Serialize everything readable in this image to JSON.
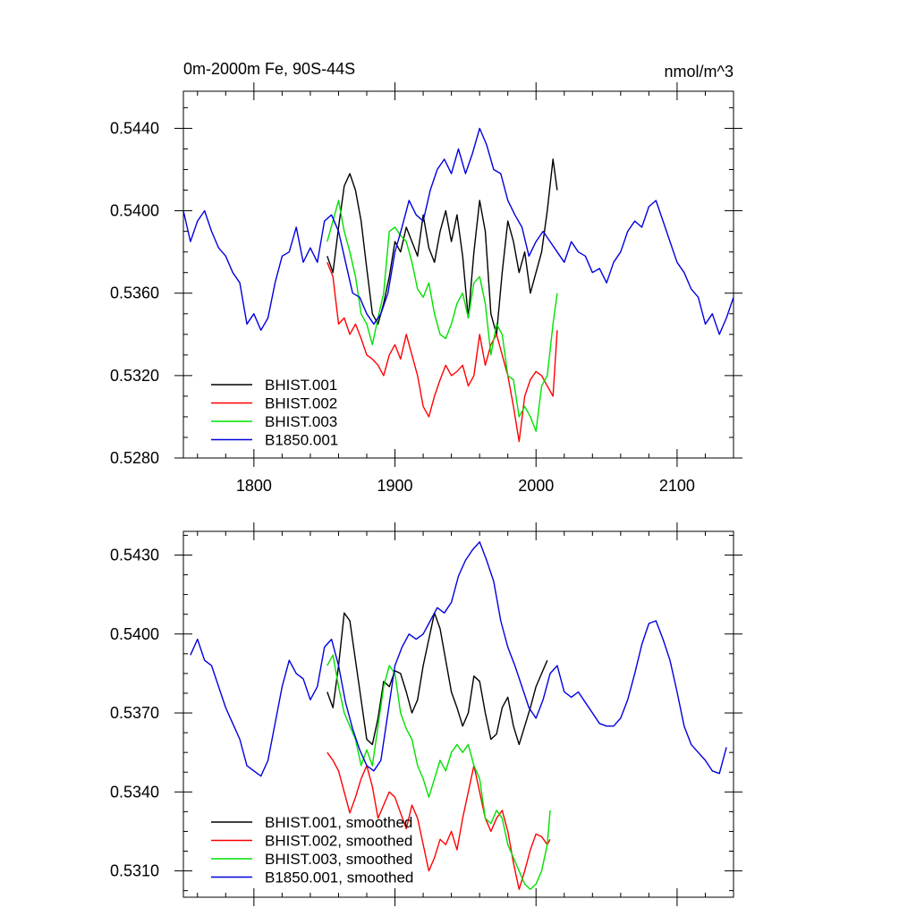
{
  "chart_data": [
    {
      "type": "line",
      "title": "0m-2000m Fe, 90S-44S",
      "units": "nmol/m^3",
      "xlim": [
        1750,
        2140
      ],
      "ylim": [
        0.528,
        0.5458
      ],
      "x_ticks": [
        1800,
        1900,
        2000,
        2100
      ],
      "x_tick_labels": [
        "1800",
        "1900",
        "2000",
        "2100"
      ],
      "y_ticks": [
        0.528,
        0.532,
        0.536,
        0.54,
        0.544
      ],
      "y_tick_labels": [
        "0.5280",
        "0.5320",
        "0.5360",
        "0.5400",
        "0.5440"
      ],
      "legend": "bottom-left",
      "series": [
        {
          "name": "BHIST.001",
          "color": "#000000",
          "x": [
            1852,
            1856,
            1860,
            1864,
            1868,
            1872,
            1876,
            1880,
            1884,
            1888,
            1892,
            1896,
            1900,
            1904,
            1908,
            1912,
            1916,
            1920,
            1924,
            1928,
            1932,
            1936,
            1940,
            1944,
            1948,
            1952,
            1956,
            1960,
            1964,
            1968,
            1972,
            1976,
            1980,
            1984,
            1988,
            1992,
            1996,
            2000,
            2004,
            2008,
            2012,
            2015
          ],
          "values": [
            0.5378,
            0.537,
            0.5392,
            0.5412,
            0.5418,
            0.541,
            0.5395,
            0.5372,
            0.535,
            0.5345,
            0.5355,
            0.5368,
            0.5385,
            0.538,
            0.5392,
            0.5385,
            0.5378,
            0.5398,
            0.5382,
            0.5375,
            0.539,
            0.54,
            0.5385,
            0.5398,
            0.5378,
            0.5348,
            0.538,
            0.5405,
            0.539,
            0.535,
            0.534,
            0.537,
            0.5395,
            0.5385,
            0.537,
            0.538,
            0.536,
            0.537,
            0.538,
            0.54,
            0.5425,
            0.541
          ]
        },
        {
          "name": "BHIST.002",
          "color": "#ff0000",
          "x": [
            1852,
            1856,
            1860,
            1864,
            1868,
            1872,
            1876,
            1880,
            1884,
            1888,
            1892,
            1896,
            1900,
            1904,
            1908,
            1912,
            1916,
            1920,
            1924,
            1928,
            1932,
            1936,
            1940,
            1944,
            1948,
            1952,
            1956,
            1960,
            1964,
            1968,
            1972,
            1976,
            1980,
            1984,
            1988,
            1992,
            1996,
            2000,
            2004,
            2008,
            2012,
            2015
          ],
          "values": [
            0.5375,
            0.5368,
            0.5345,
            0.5348,
            0.534,
            0.5345,
            0.5338,
            0.533,
            0.5328,
            0.5325,
            0.532,
            0.533,
            0.5335,
            0.5328,
            0.534,
            0.533,
            0.532,
            0.5305,
            0.53,
            0.531,
            0.5318,
            0.5325,
            0.532,
            0.5322,
            0.5325,
            0.5315,
            0.532,
            0.534,
            0.5325,
            0.5335,
            0.534,
            0.533,
            0.532,
            0.5305,
            0.5288,
            0.531,
            0.5318,
            0.5322,
            0.532,
            0.5315,
            0.531,
            0.5342
          ]
        },
        {
          "name": "BHIST.003",
          "color": "#00e000",
          "x": [
            1852,
            1856,
            1860,
            1864,
            1868,
            1872,
            1876,
            1880,
            1884,
            1888,
            1892,
            1896,
            1900,
            1904,
            1908,
            1912,
            1916,
            1920,
            1924,
            1928,
            1932,
            1936,
            1940,
            1944,
            1948,
            1952,
            1956,
            1960,
            1964,
            1968,
            1972,
            1976,
            1980,
            1984,
            1988,
            1992,
            1996,
            2000,
            2004,
            2008,
            2012,
            2015
          ],
          "values": [
            0.5385,
            0.5395,
            0.5405,
            0.539,
            0.538,
            0.5368,
            0.535,
            0.5345,
            0.5335,
            0.5348,
            0.536,
            0.539,
            0.5392,
            0.5388,
            0.5385,
            0.5375,
            0.5362,
            0.5358,
            0.5365,
            0.535,
            0.534,
            0.5338,
            0.5345,
            0.5355,
            0.536,
            0.5348,
            0.5365,
            0.5368,
            0.5355,
            0.533,
            0.5345,
            0.534,
            0.532,
            0.5318,
            0.53,
            0.5305,
            0.53,
            0.5293,
            0.5315,
            0.532,
            0.5345,
            0.536
          ]
        },
        {
          "name": "B1850.001",
          "color": "#0000e0",
          "x": [
            1750,
            1755,
            1760,
            1765,
            1770,
            1775,
            1780,
            1785,
            1790,
            1795,
            1800,
            1805,
            1810,
            1815,
            1820,
            1825,
            1830,
            1835,
            1840,
            1845,
            1850,
            1855,
            1860,
            1865,
            1870,
            1875,
            1880,
            1885,
            1890,
            1895,
            1900,
            1905,
            1910,
            1915,
            1920,
            1925,
            1930,
            1935,
            1940,
            1945,
            1950,
            1955,
            1960,
            1965,
            1970,
            1975,
            1980,
            1985,
            1990,
            1995,
            2000,
            2005,
            2010,
            2015,
            2020,
            2025,
            2030,
            2035,
            2040,
            2045,
            2050,
            2055,
            2060,
            2065,
            2070,
            2075,
            2080,
            2085,
            2090,
            2095,
            2100,
            2105,
            2110,
            2115,
            2120,
            2125,
            2130,
            2135,
            2140
          ],
          "values": [
            0.54,
            0.5385,
            0.5395,
            0.54,
            0.539,
            0.5382,
            0.5378,
            0.537,
            0.5365,
            0.5345,
            0.535,
            0.5342,
            0.5348,
            0.5365,
            0.5378,
            0.538,
            0.5392,
            0.5375,
            0.5382,
            0.5375,
            0.5395,
            0.5398,
            0.539,
            0.5375,
            0.536,
            0.5358,
            0.535,
            0.5345,
            0.535,
            0.536,
            0.538,
            0.5392,
            0.5405,
            0.5398,
            0.5395,
            0.541,
            0.542,
            0.5425,
            0.5418,
            0.543,
            0.5418,
            0.5428,
            0.544,
            0.5432,
            0.542,
            0.5418,
            0.5405,
            0.5398,
            0.5392,
            0.5378,
            0.5385,
            0.539,
            0.5385,
            0.538,
            0.5375,
            0.5385,
            0.538,
            0.5378,
            0.537,
            0.5372,
            0.5365,
            0.5375,
            0.538,
            0.539,
            0.5395,
            0.5392,
            0.5402,
            0.5405,
            0.5395,
            0.5385,
            0.5375,
            0.537,
            0.5362,
            0.5358,
            0.5345,
            0.535,
            0.534,
            0.5348,
            0.5358
          ]
        }
      ]
    },
    {
      "type": "line",
      "xlim": [
        1750,
        2140
      ],
      "ylim": [
        0.53,
        0.5439
      ],
      "x_ticks": [
        1800,
        1900,
        2000,
        2100
      ],
      "y_ticks": [
        0.531,
        0.534,
        0.537,
        0.54,
        0.543
      ],
      "y_tick_labels": [
        "0.5310",
        "0.5340",
        "0.5370",
        "0.5400",
        "0.5430"
      ],
      "legend": "bottom-left",
      "series": [
        {
          "name": "BHIST.001, smoothed",
          "color": "#000000",
          "x": [
            1852,
            1856,
            1860,
            1864,
            1868,
            1872,
            1876,
            1880,
            1884,
            1888,
            1892,
            1896,
            1900,
            1904,
            1908,
            1912,
            1916,
            1920,
            1924,
            1928,
            1932,
            1936,
            1940,
            1944,
            1948,
            1952,
            1956,
            1960,
            1964,
            1968,
            1972,
            1976,
            1980,
            1984,
            1988,
            1992,
            1996,
            2000,
            2004,
            2008
          ],
          "values": [
            0.5378,
            0.5372,
            0.5388,
            0.5408,
            0.5405,
            0.539,
            0.5375,
            0.536,
            0.5358,
            0.5368,
            0.5382,
            0.538,
            0.5386,
            0.5385,
            0.5378,
            0.537,
            0.5375,
            0.5388,
            0.5398,
            0.5408,
            0.5402,
            0.539,
            0.5378,
            0.5372,
            0.5365,
            0.537,
            0.5384,
            0.5382,
            0.537,
            0.536,
            0.5362,
            0.5372,
            0.5376,
            0.5365,
            0.5358,
            0.5365,
            0.5372,
            0.538,
            0.5385,
            0.539
          ]
        },
        {
          "name": "BHIST.002, smoothed",
          "color": "#ff0000",
          "x": [
            1852,
            1856,
            1860,
            1864,
            1868,
            1872,
            1876,
            1880,
            1884,
            1888,
            1892,
            1896,
            1900,
            1904,
            1908,
            1912,
            1916,
            1920,
            1924,
            1928,
            1932,
            1936,
            1940,
            1944,
            1948,
            1952,
            1956,
            1960,
            1964,
            1968,
            1972,
            1976,
            1980,
            1984,
            1988,
            1992,
            1996,
            2000,
            2004,
            2008,
            2010
          ],
          "values": [
            0.5355,
            0.5352,
            0.5348,
            0.534,
            0.5332,
            0.5338,
            0.5345,
            0.535,
            0.5342,
            0.533,
            0.5335,
            0.534,
            0.5338,
            0.5332,
            0.5326,
            0.5335,
            0.533,
            0.532,
            0.531,
            0.5315,
            0.5322,
            0.532,
            0.5325,
            0.5318,
            0.533,
            0.534,
            0.535,
            0.534,
            0.533,
            0.5325,
            0.533,
            0.5333,
            0.5325,
            0.5313,
            0.5303,
            0.531,
            0.5318,
            0.5324,
            0.5323,
            0.532,
            0.5322
          ]
        },
        {
          "name": "BHIST.003, smoothed",
          "color": "#00e000",
          "x": [
            1852,
            1856,
            1860,
            1864,
            1868,
            1872,
            1876,
            1880,
            1884,
            1888,
            1892,
            1896,
            1900,
            1904,
            1908,
            1912,
            1916,
            1920,
            1924,
            1928,
            1932,
            1936,
            1940,
            1944,
            1948,
            1952,
            1956,
            1960,
            1964,
            1968,
            1972,
            1976,
            1980,
            1984,
            1988,
            1992,
            1996,
            2000,
            2004,
            2008,
            2010
          ],
          "values": [
            0.5388,
            0.5392,
            0.538,
            0.537,
            0.5365,
            0.536,
            0.535,
            0.5356,
            0.535,
            0.5365,
            0.538,
            0.5388,
            0.5385,
            0.537,
            0.5364,
            0.536,
            0.535,
            0.5345,
            0.5338,
            0.5345,
            0.5352,
            0.5348,
            0.5355,
            0.5358,
            0.5355,
            0.5358,
            0.535,
            0.5345,
            0.533,
            0.5328,
            0.5333,
            0.533,
            0.532,
            0.5315,
            0.531,
            0.5305,
            0.5303,
            0.5305,
            0.531,
            0.532,
            0.5333
          ]
        },
        {
          "name": "B1850.001, smoothed",
          "color": "#0000e0",
          "x": [
            1755,
            1760,
            1765,
            1770,
            1775,
            1780,
            1785,
            1790,
            1795,
            1800,
            1805,
            1810,
            1815,
            1820,
            1825,
            1830,
            1835,
            1840,
            1845,
            1850,
            1855,
            1860,
            1865,
            1870,
            1875,
            1880,
            1885,
            1890,
            1895,
            1900,
            1905,
            1910,
            1915,
            1920,
            1925,
            1930,
            1935,
            1940,
            1945,
            1950,
            1955,
            1960,
            1965,
            1970,
            1975,
            1980,
            1985,
            1990,
            1995,
            2000,
            2005,
            2010,
            2015,
            2020,
            2025,
            2030,
            2035,
            2040,
            2045,
            2050,
            2055,
            2060,
            2065,
            2070,
            2075,
            2080,
            2085,
            2090,
            2095,
            2100,
            2105,
            2110,
            2115,
            2120,
            2125,
            2130,
            2135
          ],
          "values": [
            0.5392,
            0.5398,
            0.539,
            0.5388,
            0.538,
            0.5372,
            0.5366,
            0.536,
            0.535,
            0.5348,
            0.5346,
            0.5352,
            0.5366,
            0.538,
            0.539,
            0.5385,
            0.5383,
            0.5375,
            0.538,
            0.5395,
            0.5398,
            0.5388,
            0.5374,
            0.5364,
            0.5356,
            0.535,
            0.5348,
            0.5352,
            0.537,
            0.5388,
            0.5395,
            0.54,
            0.5398,
            0.54,
            0.5405,
            0.541,
            0.5408,
            0.5412,
            0.5422,
            0.5428,
            0.5432,
            0.5435,
            0.5428,
            0.542,
            0.5405,
            0.5395,
            0.5388,
            0.538,
            0.5372,
            0.5368,
            0.5375,
            0.5385,
            0.5388,
            0.5378,
            0.5376,
            0.5378,
            0.5374,
            0.537,
            0.5366,
            0.5365,
            0.5365,
            0.5368,
            0.5375,
            0.5385,
            0.5396,
            0.5404,
            0.5405,
            0.5398,
            0.539,
            0.5378,
            0.5365,
            0.5358,
            0.5355,
            0.5352,
            0.5348,
            0.5347,
            0.5357
          ]
        }
      ]
    }
  ]
}
